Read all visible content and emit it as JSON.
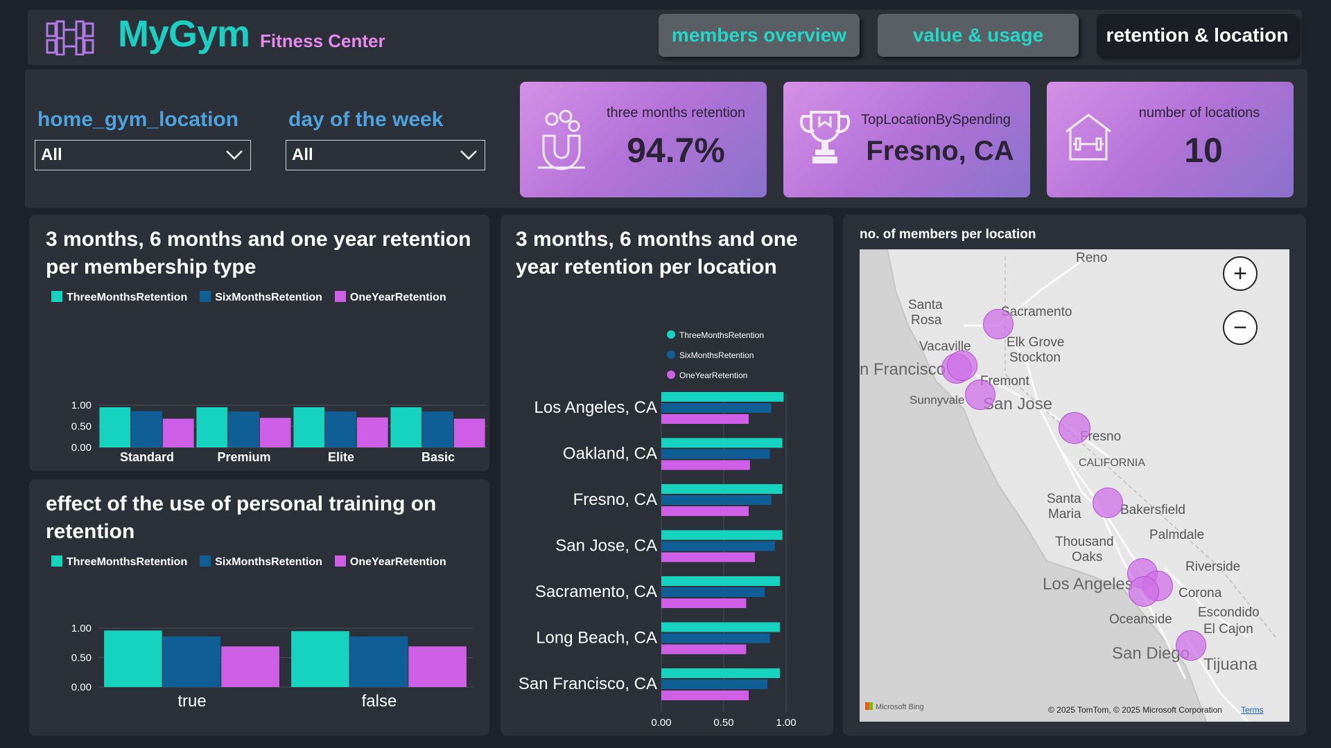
{
  "header": {
    "title": "MyGym",
    "subtitle": "Fitness Center",
    "tabs": [
      {
        "label": "members overview"
      },
      {
        "label": "value & usage"
      },
      {
        "label": "retention & location"
      }
    ]
  },
  "filters": {
    "location_label": "home_gym_location",
    "location_value": "All",
    "day_label": "day of the week",
    "day_value": "All"
  },
  "kpis": [
    {
      "label": "three months retention",
      "value": "94.7%",
      "icon": "magnet-icon"
    },
    {
      "label": "TopLocationBySpending",
      "value": "Fresno, CA",
      "icon": "trophy-icon"
    },
    {
      "label": "number of locations",
      "value": "10",
      "icon": "gym-building-icon"
    }
  ],
  "colors": {
    "three": "#16d3c0",
    "six": "#0f5f96",
    "one": "#cf5fe6",
    "accent": "#1bd0c2"
  },
  "membership_chart": {
    "title": "3 months, 6 months and one year retention per membership type",
    "legend": [
      "ThreeMonthsRetention",
      "SixMonthsRetention",
      "OneYearRetention"
    ]
  },
  "pt_chart": {
    "title": "effect of the use of personal training on retention",
    "legend": [
      "ThreeMonthsRetention",
      "SixMonthsRetention",
      "OneYearRetention"
    ]
  },
  "location_chart": {
    "title": "3 months, 6 months and one year retention per location",
    "legend": [
      "ThreeMonthsRetention",
      "SixMonthsRetention",
      "OneYearRetention"
    ]
  },
  "map": {
    "title": "no. of members per location",
    "attribution": "© 2025 TomTom, © 2025 Microsoft Corporation",
    "terms": "Terms",
    "provider": "Microsoft Bing",
    "zoom_in": "+",
    "zoom_out": "−",
    "places": [
      {
        "name": "Reno"
      },
      {
        "name": "Santa"
      },
      {
        "name": "Rosa"
      },
      {
        "name": "Sacramento"
      },
      {
        "name": "Vacaville"
      },
      {
        "name": "Elk Grove"
      },
      {
        "name": "Stockton"
      },
      {
        "name": "n Francisco"
      },
      {
        "name": "Fremont"
      },
      {
        "name": "Sunnyvale"
      },
      {
        "name": "San Jose"
      },
      {
        "name": "Fresno"
      },
      {
        "name": "CALIFORNIA"
      },
      {
        "name": "Santa"
      },
      {
        "name": "Maria"
      },
      {
        "name": "Bakersfield"
      },
      {
        "name": "Thousand"
      },
      {
        "name": "Oaks"
      },
      {
        "name": "Palmdale"
      },
      {
        "name": "Riverside"
      },
      {
        "name": "Los Angeles"
      },
      {
        "name": "Corona"
      },
      {
        "name": "Oceanside"
      },
      {
        "name": "Escondido"
      },
      {
        "name": "El Cajon"
      },
      {
        "name": "San Diego"
      },
      {
        "name": "Tijuana"
      }
    ]
  },
  "chart_data": [
    {
      "type": "bar",
      "title": "3 months, 6 months and one year retention per membership type",
      "categories": [
        "Standard",
        "Premium",
        "Elite",
        "Basic"
      ],
      "series": [
        {
          "name": "ThreeMonthsRetention",
          "values": [
            0.95,
            0.95,
            0.95,
            0.95
          ]
        },
        {
          "name": "SixMonthsRetention",
          "values": [
            0.86,
            0.85,
            0.85,
            0.85
          ]
        },
        {
          "name": "OneYearRetention",
          "values": [
            0.68,
            0.7,
            0.71,
            0.68
          ]
        }
      ],
      "yticks": [
        "0.00",
        "0.50",
        "1.00"
      ],
      "ylim": [
        0,
        1
      ],
      "legend": "top"
    },
    {
      "type": "bar",
      "title": "effect of the use of personal training on retention",
      "categories": [
        "true",
        "false"
      ],
      "series": [
        {
          "name": "ThreeMonthsRetention",
          "values": [
            0.96,
            0.95
          ]
        },
        {
          "name": "SixMonthsRetention",
          "values": [
            0.86,
            0.86
          ]
        },
        {
          "name": "OneYearRetention",
          "values": [
            0.69,
            0.69
          ]
        }
      ],
      "yticks": [
        "0.00",
        "0.50",
        "1.00"
      ],
      "ylim": [
        0,
        1
      ],
      "legend": "top"
    },
    {
      "type": "bar",
      "orientation": "horizontal",
      "title": "3 months, 6 months and one year retention per location",
      "categories": [
        "Los Angeles, CA",
        "Oakland, CA",
        "Fresno, CA",
        "San Jose, CA",
        "Sacramento, CA",
        "Long Beach, CA",
        "San Francisco, CA"
      ],
      "series": [
        {
          "name": "ThreeMonthsRetention",
          "values": [
            0.98,
            0.97,
            0.97,
            0.97,
            0.95,
            0.95,
            0.95
          ]
        },
        {
          "name": "SixMonthsRetention",
          "values": [
            0.88,
            0.87,
            0.88,
            0.91,
            0.83,
            0.87,
            0.85
          ]
        },
        {
          "name": "OneYearRetention",
          "values": [
            0.7,
            0.71,
            0.7,
            0.75,
            0.68,
            0.68,
            0.7
          ]
        }
      ],
      "xticks": [
        "0.00",
        "0.50",
        "1.00"
      ],
      "xlim": [
        0,
        1
      ],
      "legend": "top-left"
    }
  ]
}
